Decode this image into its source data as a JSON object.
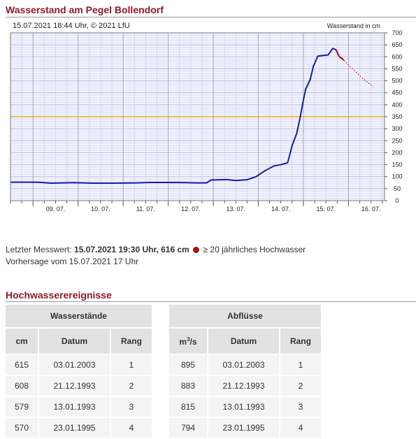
{
  "page_title": "Wasserstand am Pegel Bollendorf",
  "chart_header": {
    "timestamp": "15.07.2021 18:44 Uhr, © 2021 LfU",
    "unit_label": "Wasserstand in cm"
  },
  "chart_data": {
    "type": "line",
    "title": "",
    "ylabel": "Wasserstand in cm",
    "ylim": [
      0,
      700
    ],
    "yticks": [
      0,
      50,
      100,
      150,
      200,
      250,
      300,
      350,
      400,
      450,
      500,
      550,
      600,
      650,
      700
    ],
    "xlim_days": [
      8.5,
      16.8
    ],
    "x_tick_labels": [
      "09. 07.",
      "10. 07.",
      "11. 07.",
      "12. 07.",
      "13. 07.",
      "14. 07.",
      "15. 07.",
      "16. 07."
    ],
    "x_tick_days": [
      9,
      10,
      11,
      12,
      13,
      14,
      15,
      16
    ],
    "threshold_level": 350,
    "grid": true,
    "colors": {
      "measured": "#1a1aa8",
      "forecast": "#cc0000",
      "threshold": "#e0a000",
      "plot_bg": "#f0f2ff",
      "grid": "#c0c0c0"
    },
    "measured": [
      [
        8.5,
        77
      ],
      [
        9.1,
        77
      ],
      [
        9.4,
        73
      ],
      [
        9.9,
        75
      ],
      [
        10.3,
        73
      ],
      [
        10.8,
        73
      ],
      [
        11.3,
        74
      ],
      [
        11.6,
        76
      ],
      [
        12.0,
        76
      ],
      [
        12.4,
        75
      ],
      [
        12.6,
        74
      ],
      [
        12.85,
        74
      ],
      [
        12.95,
        86
      ],
      [
        13.3,
        88
      ],
      [
        13.5,
        84
      ],
      [
        13.75,
        87
      ],
      [
        13.95,
        100
      ],
      [
        14.15,
        125
      ],
      [
        14.35,
        145
      ],
      [
        14.5,
        150
      ],
      [
        14.65,
        158
      ],
      [
        14.75,
        230
      ],
      [
        14.85,
        280
      ],
      [
        14.92,
        340
      ],
      [
        15.0,
        420
      ],
      [
        15.05,
        465
      ],
      [
        15.15,
        505
      ],
      [
        15.22,
        560
      ],
      [
        15.32,
        603
      ],
      [
        15.45,
        606
      ],
      [
        15.55,
        608
      ],
      [
        15.65,
        635
      ],
      [
        15.72,
        630
      ],
      [
        15.8,
        600
      ],
      [
        15.88,
        590
      ]
    ],
    "forecast": [
      [
        15.72,
        630
      ],
      [
        15.8,
        600
      ],
      [
        15.9,
        585
      ],
      [
        16.05,
        557
      ],
      [
        16.2,
        530
      ],
      [
        16.35,
        505
      ],
      [
        16.55,
        475
      ]
    ]
  },
  "status": {
    "line1_prefix": "Letzter Messwert: ",
    "line1_value": "15.07.2021 19:30 Uhr, 616 cm",
    "line1_suffix": "≥ 20 jährliches Hochwasser",
    "line2": "Vorhersage vom 15.07.2021 17 Uhr"
  },
  "section_title": "Hochwasserereignisse",
  "table_wasserstaende": {
    "title": "Wasserstände",
    "columns": [
      "cm",
      "Datum",
      "Rang"
    ],
    "rows": [
      [
        "615",
        "03.01.2003",
        "1"
      ],
      [
        "608",
        "21.12.1993",
        "2"
      ],
      [
        "579",
        "13.01.1993",
        "3"
      ],
      [
        "570",
        "23.01.1995",
        "4"
      ]
    ]
  },
  "table_abfluesse": {
    "title": "Abflüsse",
    "columns": [
      "m3/s",
      "Datum",
      "Rang"
    ],
    "unit_base": "m",
    "unit_sup": "3",
    "unit_rest": "/s",
    "rows": [
      [
        "895",
        "03.01.2003",
        "1"
      ],
      [
        "883",
        "21.12.1993",
        "2"
      ],
      [
        "815",
        "13.01.1993",
        "3"
      ],
      [
        "794",
        "23.01.1995",
        "4"
      ]
    ]
  }
}
